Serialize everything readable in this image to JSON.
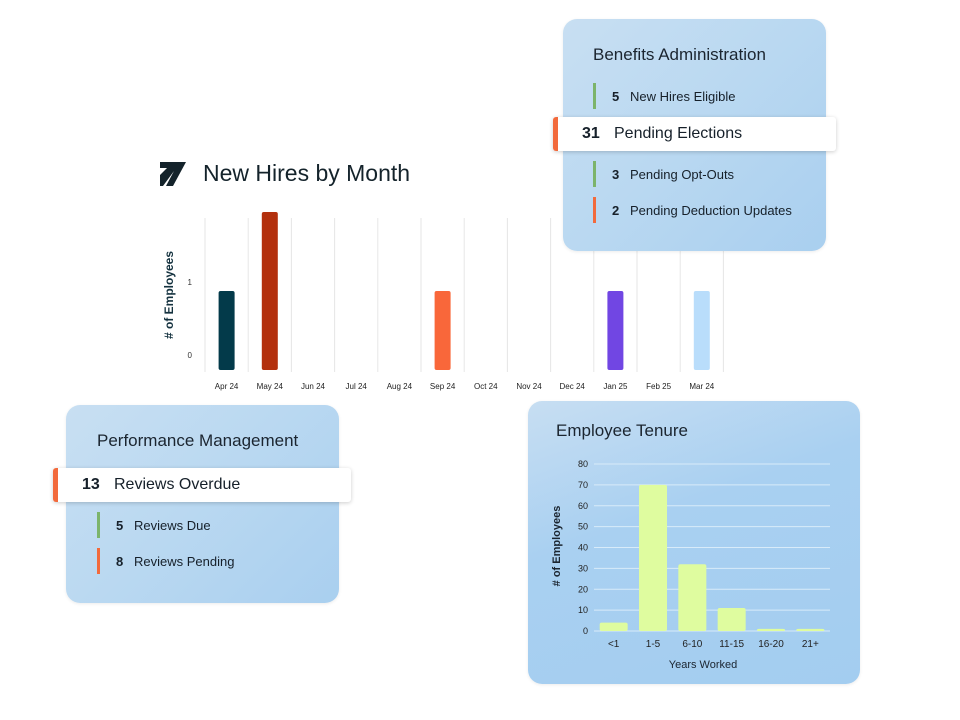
{
  "hires_chart": {
    "logo_icon": "arrow-up-right-logo-icon",
    "chart_data": {
      "type": "bar",
      "title": "New Hires by Month",
      "ylabel": "# of Employees",
      "yticks": [
        0,
        1
      ],
      "categories": [
        "Apr 24",
        "May 24",
        "Jun 24",
        "Jul 24",
        "Aug 24",
        "Sep 24",
        "Oct 24",
        "Nov 24",
        "Dec 24",
        "Jan 25",
        "Feb 25",
        "Mar 24"
      ],
      "values": [
        1,
        2,
        0,
        0,
        0,
        1,
        0,
        0,
        0,
        1,
        0,
        1
      ],
      "colors": [
        "#033a4a",
        "#b3300d",
        "",
        "",
        "",
        "#f9673a",
        "",
        "",
        "",
        "#7146e3",
        "",
        "#b9ddfb"
      ],
      "grid": "vertical"
    }
  },
  "benefits": {
    "title": "Benefits Administration",
    "items": [
      {
        "count": "5",
        "label": "New Hires Eligible",
        "color": "#7cb46b"
      },
      {
        "count": "3",
        "label": "Pending Opt-Outs",
        "color": "#7cb46b"
      },
      {
        "count": "2",
        "label": "Pending Deduction Updates",
        "color": "#f26a3c"
      }
    ],
    "highlight": {
      "count": "31",
      "label": "Pending Elections",
      "color": "#f26a3c"
    }
  },
  "performance": {
    "title": "Performance Management",
    "highlight": {
      "count": "13",
      "label": "Reviews Overdue",
      "color": "#f26a3c"
    },
    "items": [
      {
        "count": "5",
        "label": "Reviews Due",
        "color": "#7cb46b"
      },
      {
        "count": "8",
        "label": "Reviews Pending",
        "color": "#f26a3c"
      }
    ]
  },
  "tenure": {
    "chart_data": {
      "type": "bar",
      "title": "Employee Tenure",
      "xlabel": "Years Worked",
      "ylabel": "# of Employees",
      "ylim": [
        0,
        80
      ],
      "yticks": [
        0,
        10,
        20,
        30,
        40,
        50,
        60,
        70,
        80
      ],
      "categories": [
        "<1",
        "1-5",
        "6-10",
        "11-15",
        "16-20",
        "21+"
      ],
      "values": [
        4,
        70,
        32,
        11,
        1,
        1
      ],
      "bar_color": "#dffc9f",
      "grid": "horizontal"
    }
  }
}
